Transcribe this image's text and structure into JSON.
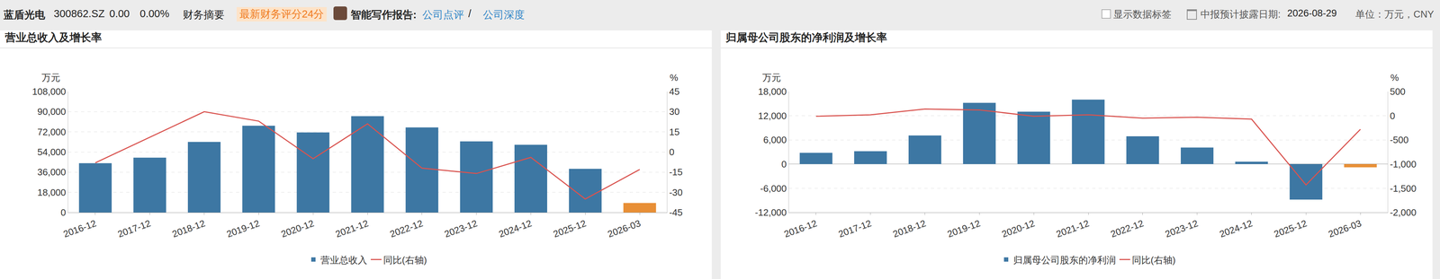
{
  "header": {
    "stock_name": "蓝盾光电",
    "code": "300862.SZ",
    "price": "0.00",
    "change": "0.00%",
    "summary": "财务摘要",
    "score": "最新财务评分24分",
    "report_label": "智能写作报告:",
    "report_links": [
      "公司点评",
      "/",
      "公司深度"
    ],
    "checkbox_label": "显示数据标签",
    "date_label": "中报预计披露日期:",
    "date": "2026-08-29",
    "unit": "单位：万元，CNY"
  },
  "chart_data": [
    {
      "type": "bar",
      "title": "营业总收入及增长率",
      "categories": [
        "2016-12",
        "2017-12",
        "2018-12",
        "2019-12",
        "2020-12",
        "2021-12",
        "2022-12",
        "2023-12",
        "2024-12",
        "2025-12",
        "2026-03"
      ],
      "y_label": "万元",
      "y2_label": "%",
      "ylim": [
        0,
        108000
      ],
      "yticks": [
        0,
        {
          "value": 18000,
          "label": "18,000"
        },
        {
          "value": 36000,
          "label": "36,000"
        },
        {
          "value": 54000,
          "label": "54,000"
        },
        {
          "value": 72000,
          "label": "72,000"
        },
        {
          "value": 90000,
          "label": "90,000"
        },
        {
          "value": 108000,
          "label": "108,000"
        }
      ],
      "y2lim": [
        -45,
        45
      ],
      "y2ticks": [
        -45,
        -30,
        -15,
        0,
        15,
        30,
        45
      ],
      "grid": true,
      "legend": "bottom",
      "series": [
        {
          "name": "营业总收入",
          "type": "bar",
          "colors": [
            "#3d77a3",
            "#3d77a3",
            "#3d77a3",
            "#3d77a3",
            "#3d77a3",
            "#3d77a3",
            "#3d77a3",
            "#3d77a3",
            "#3d77a3",
            "#3d77a3",
            "#e88f36"
          ],
          "values": [
            44000,
            49000,
            63000,
            77500,
            71500,
            86000,
            76000,
            63500,
            60500,
            39000,
            8500
          ]
        },
        {
          "name": "同比(右轴)",
          "type": "line",
          "axis": "y2",
          "color": "#d9534f",
          "values": [
            -8,
            11,
            30,
            23,
            -5,
            21,
            -12,
            -16,
            -4,
            -35,
            -13
          ]
        }
      ]
    },
    {
      "type": "bar",
      "title": "归属母公司股东的净利润及增长率",
      "categories": [
        "2016-12",
        "2017-12",
        "2018-12",
        "2019-12",
        "2020-12",
        "2021-12",
        "2022-12",
        "2023-12",
        "2024-12",
        "2025-12",
        "2026-03"
      ],
      "y_label": "万元",
      "y2_label": "%",
      "ylim": [
        -12000,
        18000
      ],
      "yticks": [
        {
          "value": -12000,
          "label": "-12,000"
        },
        {
          "value": -6000,
          "label": "-6,000"
        },
        0,
        {
          "value": 6000,
          "label": "6,000"
        },
        {
          "value": 12000,
          "label": "12,000"
        },
        {
          "value": 18000,
          "label": "18,000"
        }
      ],
      "y2lim": [
        -2000,
        500
      ],
      "y2ticks": [
        {
          "value": -2000,
          "label": "-2,000"
        },
        {
          "value": -1500,
          "label": "-1,500"
        },
        {
          "value": -1000,
          "label": "-1,000"
        },
        -500,
        0,
        500
      ],
      "grid": true,
      "legend": "bottom",
      "series": [
        {
          "name": "归属母公司股东的净利润",
          "type": "bar",
          "colors": [
            "#3d77a3",
            "#3d77a3",
            "#3d77a3",
            "#3d77a3",
            "#3d77a3",
            "#3d77a3",
            "#3d77a3",
            "#3d77a3",
            "#3d77a3",
            "#3d77a3",
            "#e88f36"
          ],
          "values": [
            2800,
            3200,
            7100,
            15200,
            13000,
            16000,
            6900,
            4100,
            600,
            -8800,
            -800
          ]
        },
        {
          "name": "同比(右轴)",
          "type": "line",
          "axis": "y2",
          "color": "#d9534f",
          "values": [
            -10,
            20,
            140,
            120,
            -10,
            20,
            -50,
            -30,
            -70,
            -1430,
            -280
          ]
        }
      ]
    }
  ]
}
